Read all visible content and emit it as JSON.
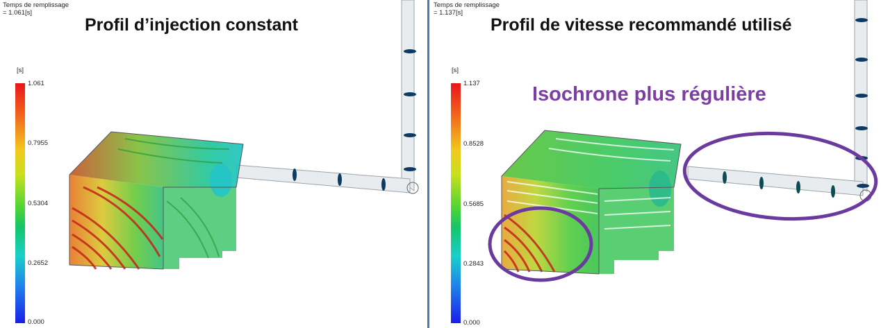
{
  "left_panel": {
    "result_label": "Temps de remplissage",
    "result_value": "= 1.061[s]",
    "title": "Profil d’injection constant",
    "unit": "[s]",
    "ticks": [
      "1.061",
      "0.7955",
      "0.5304",
      "0.2652",
      "0.000"
    ]
  },
  "right_panel": {
    "result_label": "Temps de remplissage",
    "result_value": "= 1.137[s]",
    "title": "Profil de vitesse recommandé utilisé",
    "unit": "[s]",
    "ticks": [
      "1.137",
      "0.8528",
      "0.5685",
      "0.2843",
      "0.000"
    ],
    "annotation": "Isochrone plus régulière"
  },
  "colors": {
    "highlight_ellipse": "#6b3a9e",
    "divider": "#4a78b8",
    "runner_marker": "#0c3a63"
  }
}
